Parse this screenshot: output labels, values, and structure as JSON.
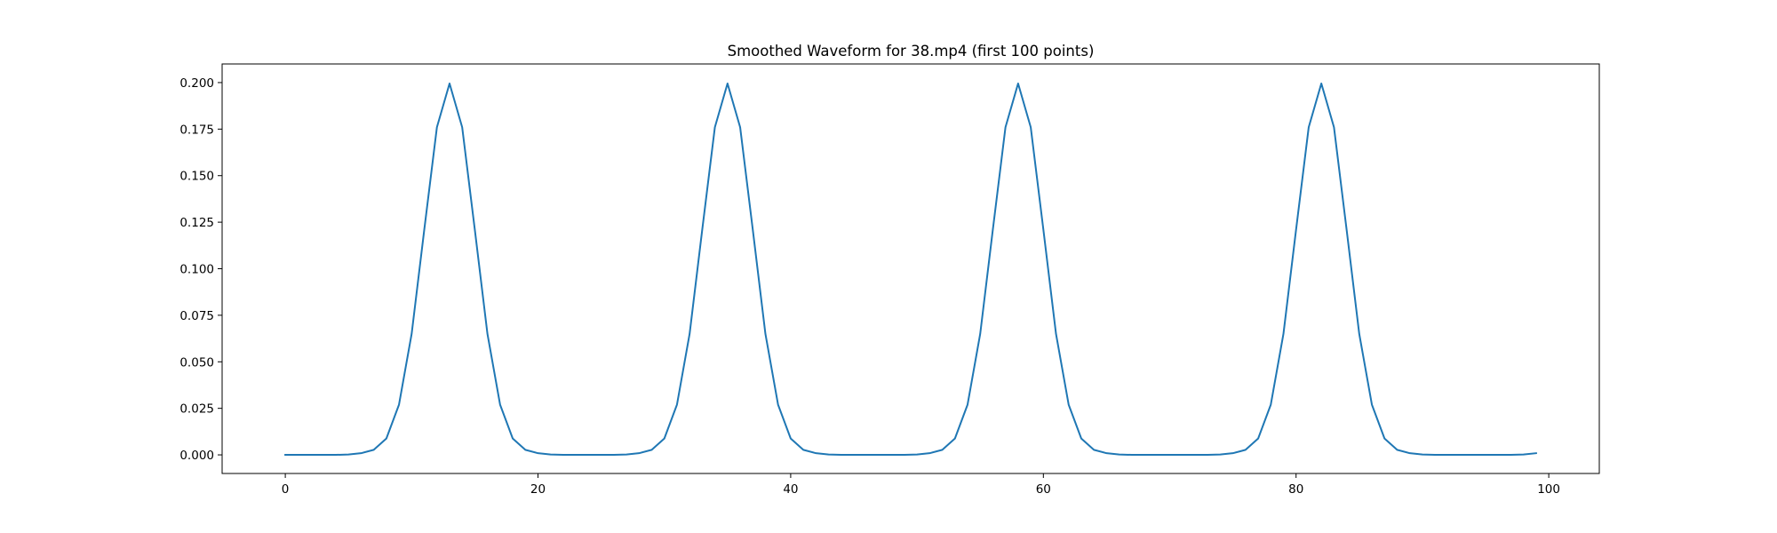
{
  "chart_data": {
    "type": "line",
    "title": "Smoothed Waveform for 38.mp4 (first 100 points)",
    "xlabel": "",
    "ylabel": "",
    "xlim": [
      -5,
      104
    ],
    "ylim": [
      -0.01,
      0.21
    ],
    "xticks": [
      0,
      20,
      40,
      60,
      80,
      100
    ],
    "xtick_labels": [
      "0",
      "20",
      "40",
      "60",
      "80",
      "100"
    ],
    "yticks": [
      0.0,
      0.025,
      0.05,
      0.075,
      0.1,
      0.125,
      0.15,
      0.175,
      0.2
    ],
    "ytick_labels": [
      "0.000",
      "0.025",
      "0.050",
      "0.075",
      "0.100",
      "0.125",
      "0.150",
      "0.175",
      "0.200"
    ],
    "grid": false,
    "legend": "none",
    "series": [
      {
        "color": "#1f77b4",
        "x": [
          0,
          1,
          2,
          3,
          4,
          5,
          6,
          7,
          8,
          9,
          10,
          11,
          12,
          13,
          14,
          15,
          16,
          17,
          18,
          19,
          20,
          21,
          22,
          23,
          24,
          25,
          26,
          27,
          28,
          29,
          30,
          31,
          32,
          33,
          34,
          35,
          36,
          37,
          38,
          39,
          40,
          41,
          42,
          43,
          44,
          45,
          46,
          47,
          48,
          49,
          50,
          51,
          52,
          53,
          54,
          55,
          56,
          57,
          58,
          59,
          60,
          61,
          62,
          63,
          64,
          65,
          66,
          67,
          68,
          69,
          70,
          71,
          72,
          73,
          74,
          75,
          76,
          77,
          78,
          79,
          80,
          81,
          82,
          83,
          84,
          85,
          86,
          87,
          88,
          89,
          90,
          91,
          92,
          93,
          94,
          95,
          96,
          97,
          98,
          99
        ],
        "y": [
          0.0,
          0.0,
          0.0,
          0.0,
          0.0,
          0.0002,
          0.0009,
          0.0027,
          0.0088,
          0.027,
          0.065,
          0.121,
          0.176,
          0.1995,
          0.176,
          0.121,
          0.065,
          0.027,
          0.0088,
          0.0027,
          0.0009,
          0.0002,
          0.0,
          0.0,
          0.0,
          0.0,
          0.0,
          0.0002,
          0.0009,
          0.0027,
          0.0088,
          0.027,
          0.065,
          0.121,
          0.176,
          0.1995,
          0.176,
          0.121,
          0.065,
          0.027,
          0.0088,
          0.0027,
          0.0009,
          0.0002,
          0.0,
          0.0,
          0.0,
          0.0,
          0.0,
          0.0,
          0.0002,
          0.0009,
          0.0027,
          0.0088,
          0.027,
          0.065,
          0.121,
          0.176,
          0.1995,
          0.176,
          0.121,
          0.065,
          0.027,
          0.0088,
          0.0027,
          0.0009,
          0.0002,
          0.0,
          0.0,
          0.0,
          0.0,
          0.0,
          0.0,
          0.0,
          0.0002,
          0.0009,
          0.0027,
          0.0088,
          0.027,
          0.065,
          0.121,
          0.176,
          0.1995,
          0.176,
          0.121,
          0.065,
          0.027,
          0.0088,
          0.0027,
          0.0009,
          0.0002,
          0.0,
          0.0,
          0.0,
          0.0,
          0.0,
          0.0,
          0.0,
          0.0002,
          0.0009
        ]
      }
    ]
  }
}
